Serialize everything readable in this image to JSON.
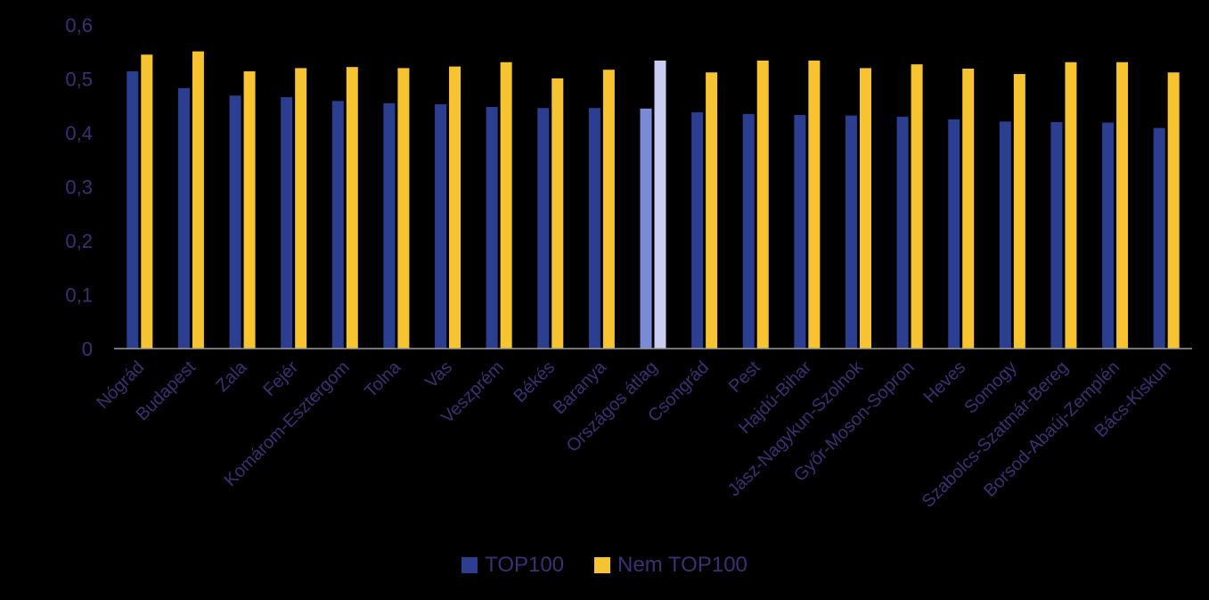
{
  "chart_data": {
    "type": "bar",
    "categories": [
      "Nógrád",
      "Budapest",
      "Zala",
      "Fejér",
      "Komárom-Esztergom",
      "Tolna",
      "Vas",
      "Veszprém",
      "Békés",
      "Baranya",
      "Országos átlag",
      "Csongrád",
      "Pest",
      "Hajdú-Bihar",
      "Jász-Nagykun-Szolnok",
      "Győr-Moson-Sopron",
      "Heves",
      "Somogy",
      "Szabolcs-Szatmár-Bereg",
      "Borsod-Abaúj-Zemplén",
      "Bács-Kiskun"
    ],
    "series": [
      {
        "name": "TOP100",
        "color": "#2c3e8f",
        "highlight_color": "#7b8ad6",
        "values": [
          0.514,
          0.483,
          0.469,
          0.466,
          0.459,
          0.455,
          0.453,
          0.448,
          0.446,
          0.446,
          0.445,
          0.438,
          0.435,
          0.433,
          0.432,
          0.43,
          0.425,
          0.421,
          0.42,
          0.419,
          0.409
        ]
      },
      {
        "name": "Nem TOP100",
        "color": "#f6c431",
        "highlight_color": "#c9cdf2",
        "values": [
          0.545,
          0.551,
          0.514,
          0.52,
          0.522,
          0.52,
          0.523,
          0.531,
          0.501,
          0.517,
          0.534,
          0.512,
          0.534,
          0.534,
          0.52,
          0.527,
          0.519,
          0.509,
          0.531,
          0.531,
          0.512
        ]
      }
    ],
    "highlight_category": "Országos átlag",
    "y_ticks": [
      "0",
      "0,1",
      "0,2",
      "0,3",
      "0,4",
      "0,5",
      "0,6"
    ],
    "ylim": [
      0,
      0.6
    ],
    "grid": false,
    "legend_position": "bottom",
    "title": "",
    "xlabel": "",
    "ylabel": ""
  },
  "legend": {
    "top100_label": "TOP100",
    "nem_top100_label": "Nem TOP100"
  }
}
